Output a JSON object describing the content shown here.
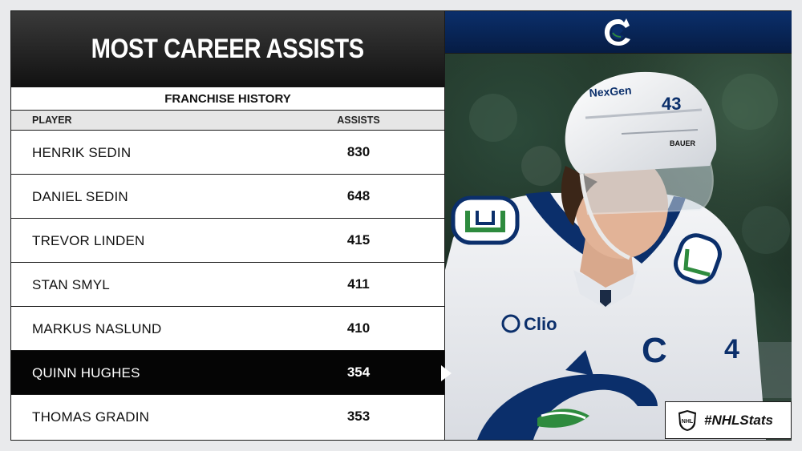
{
  "title": "MOST CAREER ASSISTS",
  "subtitle": "FRANCHISE HISTORY",
  "columns": {
    "player": "PLAYER",
    "assists": "ASSISTS"
  },
  "rows": [
    {
      "player": "HENRIK SEDIN",
      "assists": "830"
    },
    {
      "player": "DANIEL SEDIN",
      "assists": "648"
    },
    {
      "player": "TREVOR LINDEN",
      "assists": "415"
    },
    {
      "player": "STAN SMYL",
      "assists": "411"
    },
    {
      "player": "MARKUS NASLUND",
      "assists": "410"
    },
    {
      "player": "QUINN HUGHES",
      "assists": "354",
      "highlight": true
    },
    {
      "player": "THOMAS GRADIN",
      "assists": "353"
    }
  ],
  "photo": {
    "helmet_brand": "NexGen",
    "helmet_number": "43",
    "helmet_maker": "BAUER",
    "sponsor_patch": "Clio",
    "captain_letter": "C",
    "sleeve_number": "4"
  },
  "badge": {
    "text": "#NHLStats",
    "logo_text": "NHL"
  },
  "colors": {
    "team_blue": "#0b2f6b",
    "team_green": "#2e8b3e",
    "highlight_row": "#050505"
  }
}
